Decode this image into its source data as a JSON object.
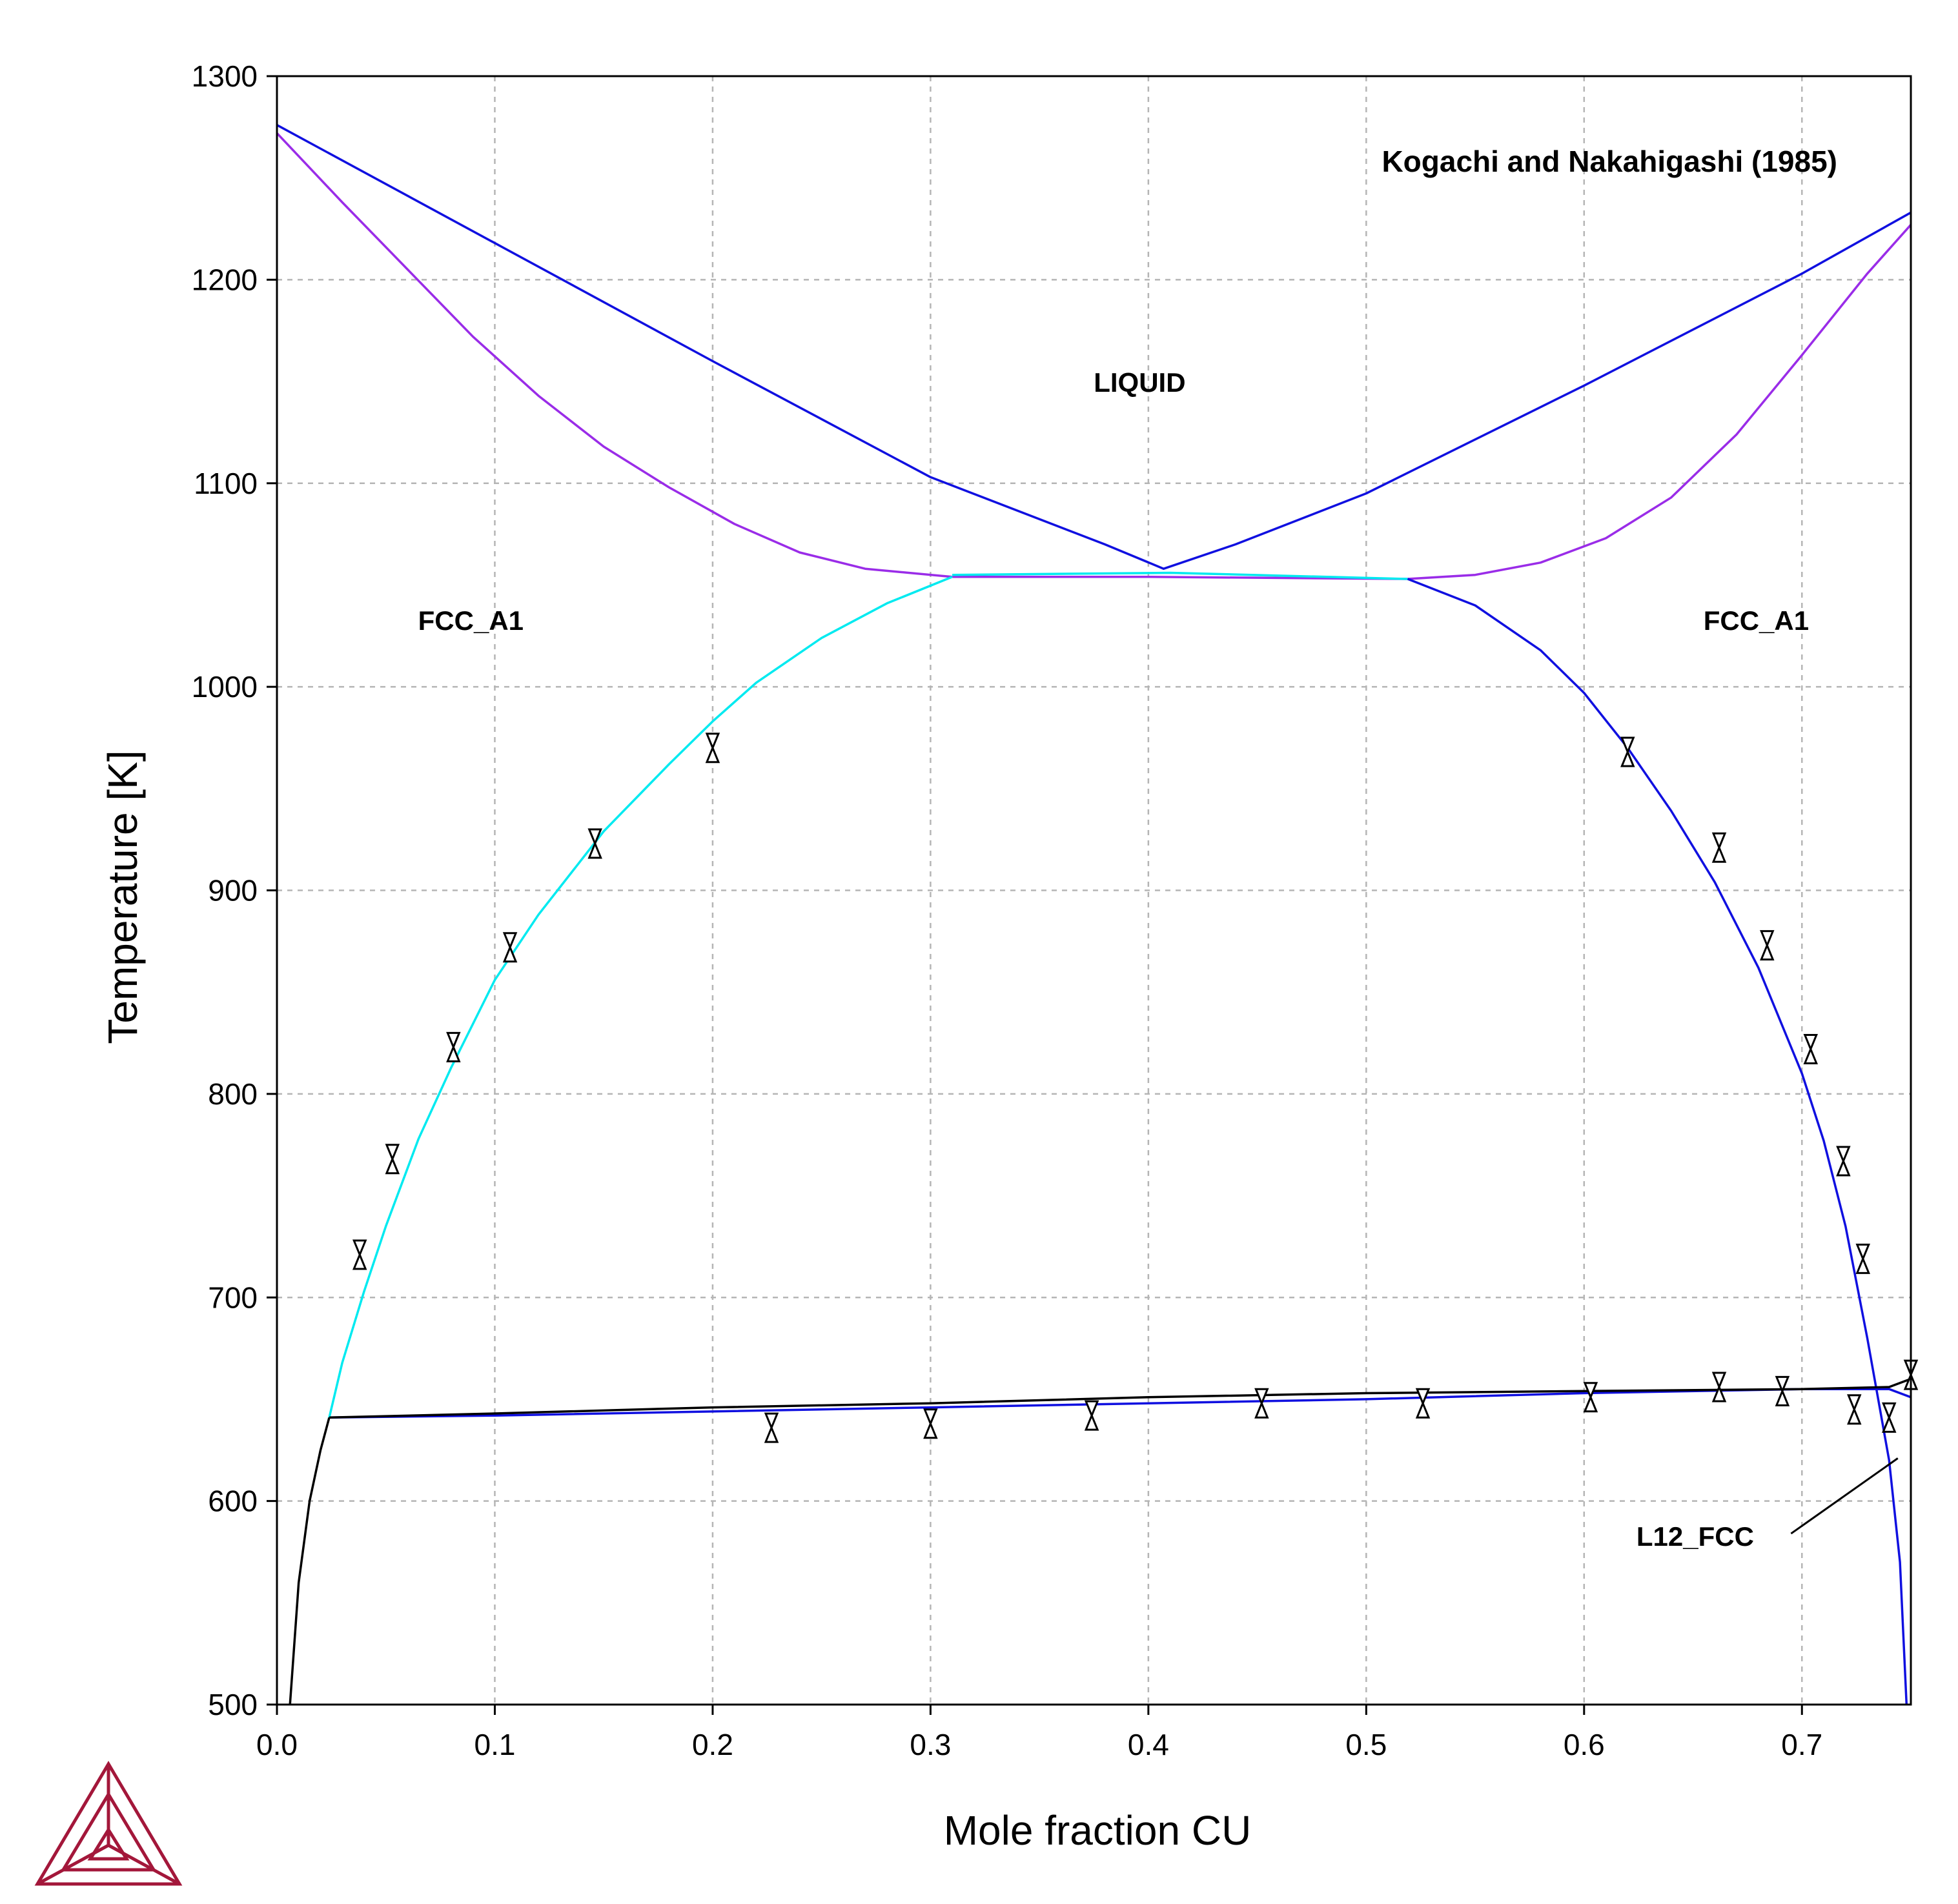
{
  "chart_data": {
    "type": "line",
    "title": "",
    "xlabel": "Mole fraction CU",
    "ylabel": "Temperature [K]",
    "xlim": [
      0,
      0.75
    ],
    "ylim": [
      500,
      1300
    ],
    "grid": true,
    "x_ticks": [
      "0.0",
      "0.1",
      "0.2",
      "0.3",
      "0.4",
      "0.5",
      "0.6",
      "0.7"
    ],
    "y_ticks": [
      "500",
      "600",
      "700",
      "800",
      "900",
      "1000",
      "1100",
      "1200",
      "1300"
    ],
    "x_tick_values": [
      0,
      0.1,
      0.2,
      0.3,
      0.4,
      0.5,
      0.6,
      0.7
    ],
    "y_tick_values": [
      500,
      600,
      700,
      800,
      900,
      1000,
      1100,
      1200,
      1300
    ],
    "annotations": {
      "reference": "Kogachi and Nakahigashi (1985)",
      "regions": [
        {
          "text": "LIQUID",
          "x": 0.396,
          "y": 1145
        },
        {
          "text": "FCC_A1",
          "x": 0.089,
          "y": 1028
        },
        {
          "text": "FCC_A1",
          "x": 0.679,
          "y": 1028
        },
        {
          "text": "L12_FCC",
          "x": 0.651,
          "y": 578
        }
      ],
      "l12_pointer": {
        "from": [
          0.695,
          584
        ],
        "to": [
          0.744,
          621
        ]
      }
    },
    "series": [
      {
        "color": "#1010e0",
        "x": [
          0.0,
          0.1,
          0.2,
          0.3,
          0.38,
          0.407,
          0.44,
          0.5,
          0.6,
          0.7,
          0.75
        ],
        "y": [
          1276,
          1218,
          1160,
          1103,
          1070,
          1058,
          1070,
          1095,
          1148,
          1203,
          1233
        ]
      },
      {
        "color": "#9a2ce8",
        "x": [
          0.0,
          0.03,
          0.06,
          0.09,
          0.12,
          0.15,
          0.18,
          0.21,
          0.24,
          0.27,
          0.31
        ],
        "y": [
          1272,
          1238,
          1205,
          1172,
          1143,
          1118,
          1098,
          1080,
          1066,
          1058,
          1054
        ]
      },
      {
        "color": "#9a2ce8",
        "x": [
          0.31,
          0.4,
          0.519
        ],
        "y": [
          1054,
          1054,
          1053
        ]
      },
      {
        "color": "#9a2ce8",
        "x": [
          0.519,
          0.55,
          0.58,
          0.61,
          0.64,
          0.67,
          0.7,
          0.73,
          0.75
        ],
        "y": [
          1053,
          1055,
          1061,
          1073,
          1093,
          1124,
          1163,
          1203,
          1227
        ]
      },
      {
        "color": "#00eaf0",
        "x": [
          0.024,
          0.03,
          0.04,
          0.05,
          0.065,
          0.08,
          0.1,
          0.12,
          0.15,
          0.18,
          0.2,
          0.22,
          0.25,
          0.28,
          0.31
        ],
        "y": [
          641,
          668,
          703,
          735,
          778,
          813,
          856,
          888,
          929,
          962,
          983,
          1002,
          1024,
          1041,
          1054
        ]
      },
      {
        "color": "#00eaf0",
        "x": [
          0.31,
          0.41,
          0.519
        ],
        "y": [
          1055,
          1056,
          1053
        ]
      },
      {
        "color": "#1010e0",
        "x": [
          0.519,
          0.55,
          0.58,
          0.6,
          0.62,
          0.64,
          0.66,
          0.68,
          0.7,
          0.71,
          0.72,
          0.73,
          0.74,
          0.745,
          0.748
        ],
        "y": [
          1053,
          1040,
          1018,
          997,
          970,
          939,
          904,
          862,
          810,
          777,
          735,
          680,
          620,
          570,
          500
        ]
      },
      {
        "color": "#1010e0",
        "x": [
          0.024,
          0.1,
          0.2,
          0.3,
          0.4,
          0.5,
          0.6,
          0.7,
          0.74,
          0.75
        ],
        "y": [
          641,
          642,
          644,
          646,
          648,
          650,
          653,
          655,
          655,
          651
        ]
      },
      {
        "color": "#000000",
        "x": [
          0.024,
          0.1,
          0.2,
          0.3,
          0.4,
          0.5,
          0.6,
          0.7,
          0.74,
          0.75
        ],
        "y": [
          641,
          643,
          646,
          648,
          651,
          653,
          654,
          655,
          656,
          660
        ]
      },
      {
        "color": "#000000",
        "x": [
          0.006,
          0.01,
          0.015,
          0.02,
          0.024
        ],
        "y": [
          500,
          560,
          600,
          625,
          641
        ]
      }
    ],
    "experimental_points": {
      "marker": "bowtie",
      "x": [
        0.038,
        0.053,
        0.081,
        0.107,
        0.146,
        0.2,
        0.62,
        0.662,
        0.684,
        0.704,
        0.719,
        0.728,
        0.227,
        0.3,
        0.374,
        0.452,
        0.526,
        0.603,
        0.662,
        0.691,
        0.724,
        0.74,
        0.75
      ],
      "y": [
        721,
        768,
        823,
        872,
        923,
        970,
        968,
        921,
        873,
        822,
        767,
        719,
        636,
        638,
        642,
        648,
        648,
        651,
        656,
        654,
        645,
        641,
        662
      ]
    }
  }
}
